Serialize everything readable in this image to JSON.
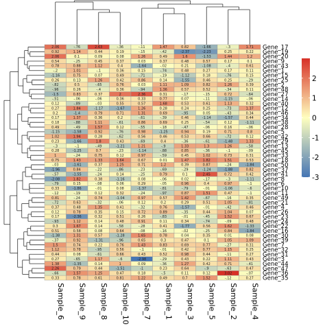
{
  "chart_data": {
    "type": "heatmap",
    "title": "",
    "columns": [
      "Sample_6",
      "Sample_9",
      "Sample_8",
      "Sample_10",
      "Sample_7",
      "Sample_1",
      "Sample_3",
      "Sample_5",
      "Sample_2",
      "Sample_4"
    ],
    "rows": [
      "Gene_17",
      "Gene_19",
      "Gene_20",
      "Gene_9",
      "Gene_43",
      "Gene_1",
      "Gene_15",
      "Gene_25",
      "Gene_2",
      "Gene_48",
      "Gene_27",
      "Gene_14",
      "Gene_40",
      "Gene_12",
      "Gene_46",
      "Gene_34",
      "Gene_38",
      "Gene_28",
      "Gene_5",
      "Gene_42",
      "Gene_29",
      "Gene_13",
      "Gene_45",
      "Gene_33",
      "Gene_18",
      "Gene_50",
      "Gene_37",
      "Gene_41",
      "Gene_8",
      "Gene_6",
      "Gene_10",
      "Gene_11",
      "Gene_49",
      "Gene_21",
      "Gene_4",
      "Gene_26",
      "Gene_23",
      "Gene_24",
      "Gene_22",
      "Gene_16",
      "Gene_30",
      "Gene_39",
      "Gene_7",
      "Gene_32",
      "Gene_31",
      "Gene_3",
      "Gene_44",
      "Gene_47",
      "Gene_36",
      "Gene_35"
    ],
    "values": [
      [
        2.06,
        -0.76,
        2.63,
        -0.36,
        -0.11,
        1.47,
        0.82,
        -1.66,
        -0.3,
        1.71
      ],
      [
        0.92,
        1.14,
        0.44,
        0.19,
        -0.15,
        -0.42,
        -2.37,
        -2.23,
        0.25,
        0.22
      ],
      [
        2.06,
        0.1,
        0.09,
        0.08,
        1.26,
        0.49,
        1.6,
        -1.53,
        1.44,
        1.2
      ],
      [
        0.54,
        -0.25,
        0.45,
        0.37,
        0.03,
        0.37,
        0.48,
        0.57,
        0.17,
        0.1
      ],
      [
        0.78,
        0.88,
        1.12,
        0.4,
        -1.64,
        -0.02,
        0.21,
        -1.08,
        -0.4,
        0.61
      ],
      [
        -0.2,
        1.01,
        -0.1,
        0.36,
        0.15,
        -0.74,
        0.48,
        0.27,
        0.17,
        0.11
      ],
      [
        -1.16,
        0.75,
        0.07,
        0.49,
        -0.71,
        -0.19,
        -1.12,
        0.18,
        -0.76,
        0.15
      ],
      [
        0.26,
        0.13,
        1.26,
        0.42,
        0.86,
        0.14,
        -1.55,
        0.46,
        0.25,
        -0.29
      ],
      [
        -0.82,
        0.5,
        -0.65,
        0.76,
        0.03,
        1.11,
        1.09,
        0.82,
        1.26,
        0.39
      ],
      [
        -0.96,
        0.26,
        -0.4,
        0.36,
        -0.94,
        1.36,
        0.57,
        0.52,
        -0.34,
        0.11
      ],
      [
        -1.5,
        0.83,
        0.37,
        2.0,
        2.36,
        0.31,
        -0.17,
        -0.15,
        0.72,
        -0.64
      ],
      [
        -0.51,
        -0.06,
        -0.06,
        0.36,
        0.33,
        0.77,
        0.07,
        -0.11,
        -1.15,
        -0.06
      ],
      [
        0.12,
        -0.89,
        -0.03,
        0.55,
        0.57,
        1.68,
        0.53,
        0.61,
        1.13,
        0.32
      ],
      [
        0.27,
        1.84,
        -1.17,
        -1.67,
        1.26,
        0.28,
        0.24,
        0.25,
        -0.73,
        1.37
      ],
      [
        0.2,
        -1.4,
        0.79,
        0.71,
        1.31,
        0.69,
        -0.95,
        0.05,
        -0.43,
        0.34
      ],
      [
        0.17,
        1.37,
        0.36,
        0.2,
        -0.61,
        -0.39,
        0.46,
        -1.14,
        -1.57,
        0.44
      ],
      [
        0.18,
        -0.88,
        1.11,
        -0.61,
        0.86,
        0.69,
        0.25,
        -0.54,
        0.12,
        -1.11
      ],
      [
        0.49,
        -0.49,
        1.57,
        0.12,
        -0.55,
        -0.18,
        -0.47,
        -0.06,
        0.16,
        -0.06
      ],
      [
        -1.15,
        -1.58,
        0.92,
        -0.76,
        0.98,
        -1.25,
        0.94,
        0.19,
        0.71,
        0.8
      ],
      [
        1.02,
        1.94,
        0.28,
        -0.62,
        0.56,
        0.46,
        0.53,
        0.66,
        -0.72,
        0.12
      ],
      [
        0.23,
        -1.66,
        1.8,
        0.43,
        -0.69,
        0.4,
        -0.36,
        -0.61,
        -1.48,
        1.33
      ],
      [
        -0.3,
        -0.1,
        -0.49,
        -1.21,
        1.21,
        -0.9,
        1.33,
        1.3,
        1.26,
        -0.58
      ],
      [
        0.28,
        -1.25,
        0.7,
        -0.23,
        -1.14,
        -0.88,
        0.85,
        -0.36,
        -0.1,
        -0.09
      ],
      [
        1.0,
        -0.24,
        0.75,
        0.12,
        0.97,
        -0.59,
        0.45,
        1.02,
        0.73,
        0.31
      ],
      [
        0.75,
        1.43,
        1.33,
        1.64,
        0.67,
        0.01,
        1.47,
        1.82,
        1.51,
        0.53
      ],
      [
        -0.03,
        -1.61,
        0.37,
        1.25,
        0.71,
        1.2,
        0.39,
        0.87,
        -0.24,
        -1.84
      ],
      [
        -1.96,
        0.84,
        -0.22,
        -0.86,
        -0.23,
        -0.69,
        -0.29,
        -1.24,
        -1.88,
        0.82
      ],
      [
        -0.57,
        -1.55,
        -0.24,
        0.14,
        -0.25,
        0.79,
        0.1,
        2.45,
        0.72,
        0.42
      ],
      [
        -2.08,
        1.82,
        0.38,
        -1.16,
        0.08,
        -0.06,
        0.02,
        -0.17,
        -0.3,
        -1.11
      ],
      [
        -0.79,
        0.15,
        -0.08,
        0.06,
        0.29,
        -0.05,
        0.96,
        0.4,
        0.97,
        -0.1
      ],
      [
        0.33,
        -1.86,
        -0.01,
        0.08,
        -1.37,
        -0.81,
        -0.79,
        -0.01,
        -1.06,
        -0.6
      ],
      [
        -0.12,
        -0.19,
        0.12,
        0.32,
        -0.24,
        -0.97,
        0.87,
        1.51,
        0.47,
        -0.1
      ],
      [
        0.81,
        -0.24,
        0.74,
        -1.04,
        0.97,
        0.57,
        1.42,
        -0.67,
        -0.16,
        0.35
      ],
      [
        -0.72,
        0.63,
        -0.32,
        -0.06,
        0.12,
        0.2,
        0.29,
        0.51,
        1.05,
        -0.81
      ],
      [
        0.37,
        0.48,
        1.35,
        0.41,
        -0.32,
        0.76,
        -1.57,
        -0.01,
        -0.42,
        0.46
      ],
      [
        0.12,
        0.78,
        0.35,
        0.15,
        0.72,
        0.89,
        -0.35,
        0.44,
        1.04,
        0.07
      ],
      [
        0.17,
        -2.36,
        0.32,
        0.51,
        0.26,
        -0.83,
        -0.01,
        -0.45,
        1.52,
        0.67
      ],
      [
        -0.93,
        1.12,
        0.14,
        0.48,
        0.91,
        0.11,
        0.34,
        -0.74,
        -0.09,
        0.48
      ],
      [
        0.3,
        1.67,
        0.14,
        -0.58,
        -0.28,
        0.41,
        -1.77,
        0.56,
        1.62,
        -1.33
      ],
      [
        0.51,
        0.58,
        0.08,
        0.64,
        -0.08,
        -0.16,
        -0.02,
        -0.25,
        0.84,
        -1.84
      ],
      [
        -1.38,
        1.31,
        0.57,
        -1.28,
        1.65,
        0.78,
        0.04,
        0.35,
        0.01,
        0.08
      ],
      [
        -0.37,
        0.92,
        -1.31,
        -0.96,
        0.65,
        0.3,
        0.47,
        0.1,
        1.05,
        1.09
      ],
      [
        1.5,
        0.74,
        0.22,
        0.76,
        1.43,
        0.83,
        0.69,
        0.77,
        -0.27,
        0.31
      ],
      [
        1.12,
        0.78,
        -0.95,
        0.56,
        -0.1,
        -0.01,
        0.42,
        0.77,
        1.15,
        0.25
      ],
      [
        0.44,
        0.08,
        -0.61,
        0.66,
        0.43,
        0.52,
        0.98,
        0.44,
        -0.11,
        0.27
      ],
      [
        0.27,
        -0.65,
        1.17,
        -0.6,
        -2.98,
        -0.29,
        0.43,
        0.22,
        1.11,
        0.43
      ],
      [
        1.38,
        -1.35,
        0.14,
        1.0,
        0.09,
        -0.36,
        1.27,
        0.42,
        0.71,
        -0.41
      ],
      [
        2.26,
        0.79,
        0.44,
        -1.51,
        -1.0,
        0.23,
        0.64,
        -0.9,
        -0.63,
        0.47
      ],
      [
        -0.66,
        1.57,
        1.25,
        0.47,
        0.18,
        -0.5,
        0.11,
        0.12,
        3.02,
        -0.07
      ],
      [
        0.33,
        0.78,
        0.61,
        0.81,
        1.22,
        0.49,
        0.7,
        1.52,
        -0.12,
        0.27
      ]
    ],
    "color_scale": {
      "min": -3,
      "max": 3,
      "low_color": "#4575B4",
      "mid_color": "#FFFFBF",
      "high_color": "#D73027",
      "ticks": [
        2,
        1,
        0,
        -1,
        -2,
        -3
      ]
    },
    "row_dendrogram": true,
    "column_dendrogram": true
  }
}
